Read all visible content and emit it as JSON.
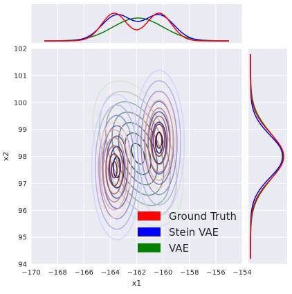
{
  "chart_data": {
    "type": "kde-jointplot",
    "xlabel": "x1",
    "ylabel": "x2",
    "xlim": [
      -170,
      -154
    ],
    "ylim": [
      94,
      102
    ],
    "x_ticks": [
      -170,
      -168,
      -166,
      -164,
      -162,
      -160,
      -158,
      -156,
      -154
    ],
    "y_ticks": [
      94,
      95,
      96,
      97,
      98,
      99,
      100,
      101,
      102
    ],
    "grid": true,
    "background": "#eaeaf2",
    "legend_position": "lower-right",
    "series": [
      {
        "name": "Ground Truth",
        "color": "#ff0000",
        "marginal_x_modes": [
          -163.7,
          -160.3
        ],
        "marginal_y_mode": 98.0,
        "joint_modes": [
          [
            -163.7,
            97.5
          ],
          [
            -160.3,
            98.6
          ]
        ]
      },
      {
        "name": "Stein VAE",
        "color": "#0000ff",
        "marginal_x_modes": [
          -163.5,
          -160.3
        ],
        "marginal_y_mode": 98.0,
        "joint_modes": [
          [
            -163.5,
            97.6
          ],
          [
            -160.3,
            98.5
          ]
        ]
      },
      {
        "name": "VAE",
        "color": "#008000",
        "marginal_x_modes": [
          -161.9
        ],
        "marginal_y_mode": 98.0,
        "joint_modes": [
          [
            -161.9,
            98.1
          ]
        ]
      }
    ]
  }
}
